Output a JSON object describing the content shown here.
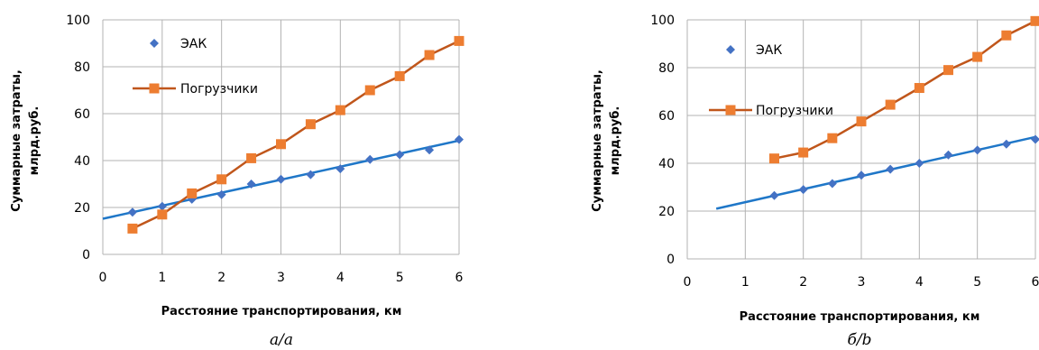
{
  "colors": {
    "eak_marker": "#4472C4",
    "eak_trend": "#1F77C8",
    "loader": "#ED7D31",
    "loader_line": "#C0561B",
    "grid": "#B3B3B3"
  },
  "chart_data": [
    {
      "type": "line",
      "caption": "а/а",
      "xlabel": "Расстояние транспортирования, км",
      "ylabel": [
        "Суммарные затраты,",
        "млрд.руб."
      ],
      "xlim": [
        0,
        6
      ],
      "ylim": [
        0,
        100
      ],
      "xticks": [
        "0",
        "1",
        "2",
        "3",
        "4",
        "5",
        "6"
      ],
      "yticks": [
        "0",
        "20",
        "40",
        "60",
        "80",
        "100"
      ],
      "grid": true,
      "legend_position": "top-left",
      "series": [
        {
          "name": "ЭАК",
          "marker": "diamond",
          "x": [
            0.5,
            1,
            1.5,
            2,
            2.5,
            3,
            3.5,
            4,
            4.5,
            5,
            5.5,
            6
          ],
          "y": [
            18,
            20.5,
            23.5,
            25.5,
            30,
            32,
            34,
            36.5,
            40.5,
            42.5,
            44.5,
            49
          ],
          "trendline": {
            "x": [
              0,
              6
            ],
            "y": [
              15.2,
              48.5
            ]
          }
        },
        {
          "name": "Погрузчики",
          "marker": "square",
          "x": [
            0.5,
            1,
            1.5,
            2,
            2.5,
            3,
            3.5,
            4,
            4.5,
            5,
            5.5,
            6
          ],
          "y": [
            11,
            17,
            26,
            32,
            41,
            47,
            55.5,
            61.5,
            70,
            76,
            85,
            91
          ]
        }
      ]
    },
    {
      "type": "line",
      "caption": "б/b",
      "xlabel": "Расстояние транспортирования, км",
      "ylabel": [
        "Суммарные затраты,",
        "млрд.руб."
      ],
      "xlim": [
        0,
        6
      ],
      "ylim": [
        0,
        100
      ],
      "xticks": [
        "0",
        "1",
        "2",
        "3",
        "4",
        "5",
        "6"
      ],
      "yticks": [
        "0",
        "20",
        "40",
        "60",
        "80",
        "100"
      ],
      "grid": true,
      "legend_position": "top-left",
      "series": [
        {
          "name": "ЭАК",
          "marker": "diamond",
          "x": [
            1.5,
            2,
            2.5,
            3,
            3.5,
            4,
            4.5,
            5,
            5.5,
            6
          ],
          "y": [
            26.5,
            29,
            31.5,
            35,
            37.5,
            40,
            43.5,
            45.5,
            48,
            50
          ],
          "trendline": {
            "x": [
              0.5,
              6
            ],
            "y": [
              21,
              51
            ]
          }
        },
        {
          "name": "Погрузчики",
          "marker": "square",
          "x": [
            1.5,
            2,
            2.5,
            3,
            3.5,
            4,
            4.5,
            5,
            5.5,
            6
          ],
          "y": [
            42,
            44.5,
            50.5,
            57.5,
            64.5,
            71.5,
            79,
            84.5,
            93.5,
            99.5
          ]
        }
      ]
    }
  ]
}
